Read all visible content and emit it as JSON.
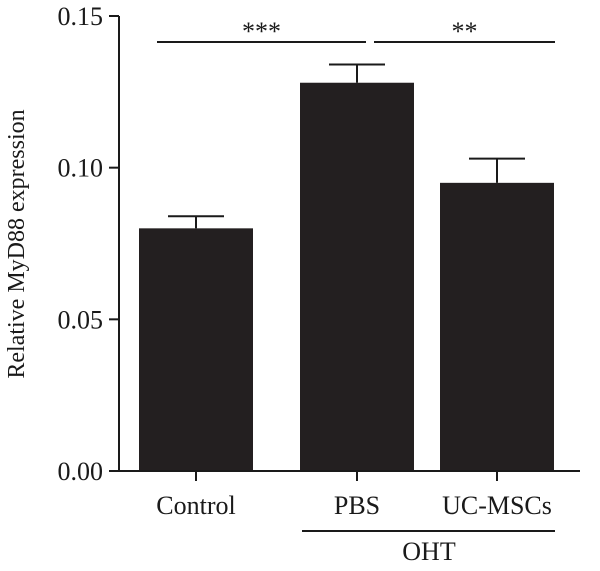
{
  "chart_data": {
    "type": "bar",
    "categories": [
      "Control",
      "PBS",
      "UC-MSCs"
    ],
    "values": [
      0.08,
      0.128,
      0.095
    ],
    "errors": [
      0.004,
      0.006,
      0.008
    ],
    "ylabel": "Relative MyD88 expression",
    "ylim": [
      0,
      0.15
    ],
    "yticks": [
      "0.00",
      "0.05",
      "0.10",
      "0.15"
    ],
    "bar_color": "#231f20",
    "group_label": "OHT",
    "significance": [
      {
        "from": "Control",
        "to": "PBS",
        "label": "***"
      },
      {
        "from": "PBS",
        "to": "UC-MSCs",
        "label": "**"
      }
    ]
  }
}
